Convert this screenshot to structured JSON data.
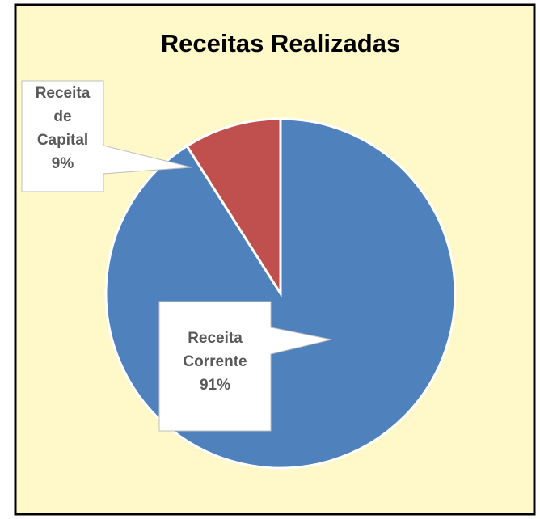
{
  "chart_data": {
    "type": "pie",
    "title": "Receitas Realizadas",
    "categories": [
      "Receita Corrente",
      "Receita de Capital"
    ],
    "values": [
      91,
      9
    ],
    "value_labels": [
      "91%",
      "9%"
    ],
    "colors": [
      "#4f81bd",
      "#c0504d"
    ]
  }
}
